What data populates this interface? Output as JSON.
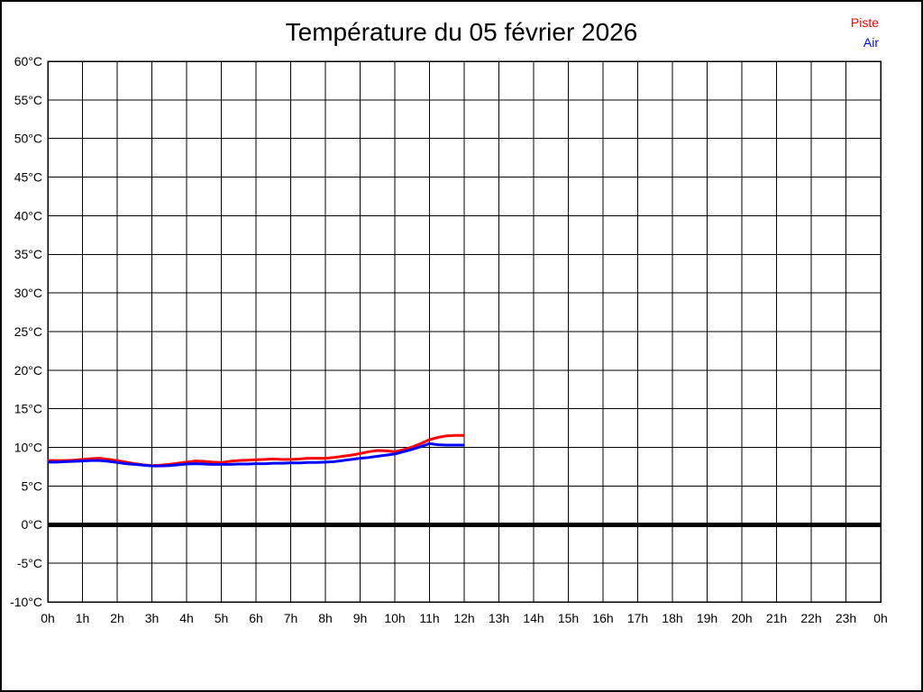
{
  "header": {
    "title": "Température du 05 février 2026"
  },
  "legend": {
    "items": [
      {
        "label": "Piste",
        "color": "#ff0000"
      },
      {
        "label": "Air",
        "color": "#0000ff"
      }
    ]
  },
  "colors": {
    "background": "#ffffff",
    "grid": "#000000",
    "frame": "#000000",
    "text": "#000000",
    "zero_line": "#000000",
    "piste": "#ff0000",
    "air": "#0000ff"
  },
  "chart_data": {
    "type": "line",
    "title": "Température du 05 février 2026",
    "xlabel": "",
    "ylabel": "",
    "xlim": [
      0,
      24
    ],
    "ylim": [
      -10,
      60
    ],
    "x_tick_step": 1,
    "y_tick_step": 5,
    "grid": true,
    "legend_position": "top-right",
    "zero_line_y": 0,
    "x_tick_labels": [
      "0h",
      "1h",
      "2h",
      "3h",
      "4h",
      "5h",
      "6h",
      "7h",
      "8h",
      "9h",
      "10h",
      "11h",
      "12h",
      "13h",
      "14h",
      "15h",
      "16h",
      "17h",
      "18h",
      "19h",
      "20h",
      "21h",
      "22h",
      "23h",
      "0h"
    ],
    "y_tick_labels": [
      "60°C",
      "55°C",
      "50°C",
      "45°C",
      "40°C",
      "35°C",
      "30°C",
      "25°C",
      "20°C",
      "15°C",
      "10°C",
      "5°C",
      "0°C",
      "-5°C",
      "-10°C"
    ],
    "series": [
      {
        "name": "Piste",
        "color": "#ff0000",
        "x": [
          0,
          0.25,
          0.5,
          0.75,
          1,
          1.25,
          1.5,
          1.75,
          2,
          2.25,
          2.5,
          2.75,
          3,
          3.25,
          3.5,
          3.75,
          4,
          4.25,
          4.5,
          4.75,
          5,
          5.25,
          5.5,
          5.75,
          6,
          6.25,
          6.5,
          6.75,
          7,
          7.25,
          7.5,
          7.75,
          8,
          8.25,
          8.5,
          8.75,
          9,
          9.25,
          9.5,
          9.75,
          10,
          10.25,
          10.5,
          10.75,
          11,
          11.25,
          11.5,
          11.75,
          12
        ],
        "y": [
          8.3,
          8.3,
          8.3,
          8.35,
          8.45,
          8.55,
          8.6,
          8.45,
          8.3,
          8.1,
          7.9,
          7.75,
          7.65,
          7.7,
          7.8,
          7.95,
          8.1,
          8.25,
          8.2,
          8.1,
          8.05,
          8.2,
          8.3,
          8.35,
          8.4,
          8.45,
          8.5,
          8.45,
          8.45,
          8.5,
          8.6,
          8.6,
          8.6,
          8.7,
          8.85,
          9.0,
          9.2,
          9.45,
          9.6,
          9.55,
          9.45,
          9.7,
          10.05,
          10.5,
          11.0,
          11.3,
          11.5,
          11.55,
          11.55
        ]
      },
      {
        "name": "Air",
        "color": "#0000ff",
        "x": [
          0,
          0.25,
          0.5,
          0.75,
          1,
          1.25,
          1.5,
          1.75,
          2,
          2.25,
          2.5,
          2.75,
          3,
          3.25,
          3.5,
          3.75,
          4,
          4.25,
          4.5,
          4.75,
          5,
          5.25,
          5.5,
          5.75,
          6,
          6.25,
          6.5,
          6.75,
          7,
          7.25,
          7.5,
          7.75,
          8,
          8.25,
          8.5,
          8.75,
          9,
          9.25,
          9.5,
          9.75,
          10,
          10.25,
          10.5,
          10.75,
          11,
          11.25,
          11.5,
          11.75,
          12
        ],
        "y": [
          8.1,
          8.1,
          8.15,
          8.2,
          8.25,
          8.3,
          8.3,
          8.2,
          8.05,
          7.9,
          7.8,
          7.7,
          7.6,
          7.6,
          7.65,
          7.75,
          7.85,
          7.9,
          7.85,
          7.8,
          7.8,
          7.8,
          7.85,
          7.85,
          7.9,
          7.9,
          7.95,
          7.95,
          8.0,
          8.0,
          8.05,
          8.05,
          8.1,
          8.15,
          8.3,
          8.45,
          8.6,
          8.7,
          8.85,
          9.0,
          9.15,
          9.45,
          9.75,
          10.1,
          10.5,
          10.35,
          10.3,
          10.3,
          10.3
        ]
      }
    ]
  }
}
